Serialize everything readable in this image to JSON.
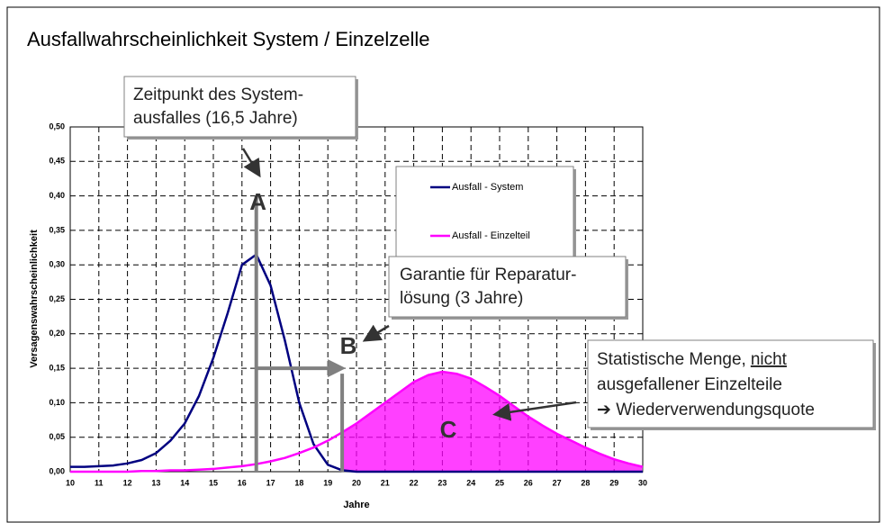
{
  "chart_data": {
    "type": "line",
    "title": "Ausfallwahrscheinlichkeit System / Einzelzelle",
    "x_label": "Jahre",
    "y_label": "Versagenswahrscheinlichkeit",
    "x": [
      10,
      10.5,
      11,
      11.5,
      12,
      12.5,
      13,
      13.5,
      14,
      14.5,
      15,
      15.5,
      16,
      16.5,
      17,
      17.5,
      18,
      18.5,
      19,
      19.5,
      20,
      20.5,
      21,
      21.5,
      22,
      22.5,
      23,
      23.5,
      24,
      24.5,
      25,
      25.5,
      26,
      26.5,
      27,
      27.5,
      28,
      28.5,
      29,
      29.5,
      30
    ],
    "series": [
      {
        "name": "Ausfall - System",
        "color": "#000080",
        "values": [
          0.007,
          0.007,
          0.008,
          0.009,
          0.012,
          0.017,
          0.027,
          0.045,
          0.07,
          0.11,
          0.165,
          0.23,
          0.3,
          0.315,
          0.27,
          0.19,
          0.1,
          0.04,
          0.01,
          0.002,
          0,
          0,
          0,
          0,
          0,
          0,
          0,
          0,
          0,
          0,
          0,
          0,
          0,
          0,
          0,
          0,
          0,
          0,
          0,
          0,
          0
        ]
      },
      {
        "name": "Ausfall - Einzelteil",
        "color": "#ff00ff",
        "values": [
          0,
          0,
          0,
          0,
          0,
          0.001,
          0.001,
          0.002,
          0.002,
          0.003,
          0.004,
          0.006,
          0.008,
          0.011,
          0.015,
          0.02,
          0.027,
          0.035,
          0.045,
          0.057,
          0.07,
          0.085,
          0.1,
          0.115,
          0.13,
          0.14,
          0.145,
          0.142,
          0.135,
          0.123,
          0.11,
          0.095,
          0.08,
          0.067,
          0.055,
          0.045,
          0.035,
          0.026,
          0.018,
          0.012,
          0.007
        ]
      }
    ],
    "xlim": [
      10,
      30
    ],
    "xticks": [
      10,
      11,
      12,
      13,
      14,
      15,
      16,
      17,
      18,
      19,
      20,
      21,
      22,
      23,
      24,
      25,
      26,
      27,
      28,
      29,
      30
    ],
    "ylim": [
      0,
      0.5
    ],
    "yticks": [
      {
        "value": 0,
        "label": "0,00"
      },
      {
        "value": 0.05,
        "label": "0,05"
      },
      {
        "value": 0.1,
        "label": "0,10"
      },
      {
        "value": 0.15,
        "label": "0,15"
      },
      {
        "value": 0.2,
        "label": "0,20"
      },
      {
        "value": 0.25,
        "label": "0,25"
      },
      {
        "value": 0.3,
        "label": "0,30"
      },
      {
        "value": 0.35,
        "label": "0,35"
      },
      {
        "value": 0.4,
        "label": "0,40"
      },
      {
        "value": 0.45,
        "label": "0,45"
      },
      {
        "value": 0.5,
        "label": "0,50"
      }
    ],
    "grid": true,
    "reference_lines": {
      "system_failure_x": 16.5,
      "system_failure_top_y": 0.4,
      "repair_end_x": 19.5,
      "guarantee_y": 0.15
    },
    "labels": {
      "a": "A",
      "b": "B",
      "c": "C"
    },
    "annotations": {
      "system_failure": [
        "Zeitpunkt des System-",
        "ausfalles (16,5 Jahre)"
      ],
      "guarantee": [
        "Garantie für Reparatur-",
        "lösung (3 Jahre)"
      ],
      "quantity": {
        "line1": "Statistische Menge,",
        "line1_underlined": "nicht",
        "line2": "ausgefallener Einzelteile",
        "line3": "➔ Wiederverwendungsquote"
      }
    }
  }
}
